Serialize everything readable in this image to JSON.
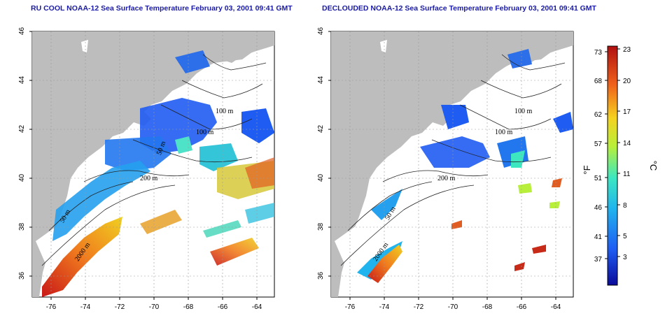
{
  "panels": [
    {
      "title": "RU COOL NOAA-12 Sea Surface Temperature February 03, 2001 09:41 GMT",
      "contour_labels": [
        "100 m",
        "100 m",
        "50 m",
        "200 m",
        "50 m",
        "2000 m"
      ]
    },
    {
      "title": "DECLOUDED NOAA-12 Sea Surface Temperature February 03, 2001 09:41 GMT",
      "contour_labels": [
        "100 m",
        "100 m",
        "200 m",
        "50 m",
        "2000 m"
      ]
    }
  ],
  "axes": {
    "lat_ticks": [
      "46",
      "44",
      "42",
      "40",
      "38",
      "36"
    ],
    "lon_ticks": [
      "-76",
      "-74",
      "-72",
      "-70",
      "-68",
      "-66",
      "-64"
    ]
  },
  "colorbar": {
    "fahrenheit_ticks": [
      "73",
      "68",
      "62",
      "57",
      "51",
      "46",
      "41",
      "37"
    ],
    "celsius_ticks": [
      "23",
      "20",
      "17",
      "14",
      "11",
      "8",
      "5",
      "3"
    ],
    "fahrenheit_unit": "°F",
    "celsius_unit": "°C",
    "colors": [
      "#0a0a9a",
      "#1f5cf2",
      "#20b4ee",
      "#3de8c0",
      "#b8ef3a",
      "#f5d21f",
      "#f0601a",
      "#b01010"
    ]
  },
  "colors": {
    "land": "#bdbdbd",
    "title": "#1a1aa6"
  }
}
